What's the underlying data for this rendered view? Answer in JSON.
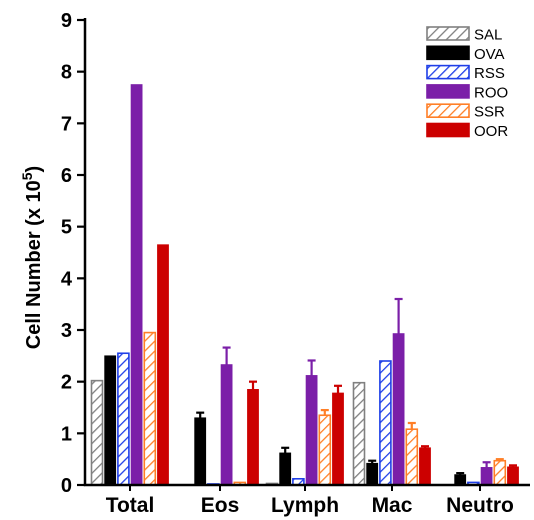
{
  "chart_data": {
    "type": "bar",
    "ylabel": "Cell Number (x 10",
    "ylabel_sup": "5",
    "ylabel_close": ")",
    "ylim": [
      0,
      9
    ],
    "yticks": [
      "0",
      "1",
      "2",
      "3",
      "4",
      "5",
      "6",
      "7",
      "8",
      "9"
    ],
    "categories": [
      "Total",
      "Eos",
      "Lymph",
      "Mac",
      "Neutro"
    ],
    "legend_position": "top-right",
    "series": [
      {
        "name": "SAL",
        "color": "#808080",
        "pattern": "hatch",
        "values": [
          2.02,
          0.0,
          0.03,
          1.98,
          0.0
        ],
        "errors": [
          0.0,
          0.0,
          0.0,
          0.0,
          0.0
        ]
      },
      {
        "name": "OVA",
        "color": "#000000",
        "pattern": "solid",
        "values": [
          2.5,
          1.3,
          0.62,
          0.42,
          0.2
        ],
        "errors": [
          0.0,
          0.1,
          0.1,
          0.05,
          0.03
        ]
      },
      {
        "name": "RSS",
        "color": "#1f3fe8",
        "pattern": "hatch",
        "values": [
          2.55,
          0.02,
          0.12,
          2.4,
          0.05
        ],
        "errors": [
          0.0,
          0.0,
          0.0,
          0.0,
          0.0
        ]
      },
      {
        "name": "ROO",
        "color": "#7b1fa8",
        "pattern": "solid",
        "values": [
          7.75,
          2.33,
          2.12,
          2.93,
          0.34
        ],
        "errors": [
          0.0,
          0.33,
          0.29,
          0.67,
          0.1
        ]
      },
      {
        "name": "SSR",
        "color": "#ff7f27",
        "pattern": "hatch",
        "values": [
          2.95,
          0.05,
          1.35,
          1.08,
          0.47
        ],
        "errors": [
          0.0,
          0.0,
          0.1,
          0.12,
          0.03
        ]
      },
      {
        "name": "OOR",
        "color": "#cc0000",
        "pattern": "solid",
        "values": [
          4.65,
          1.85,
          1.78,
          0.72,
          0.35
        ],
        "errors": [
          0.0,
          0.15,
          0.14,
          0.03,
          0.03
        ]
      }
    ]
  }
}
